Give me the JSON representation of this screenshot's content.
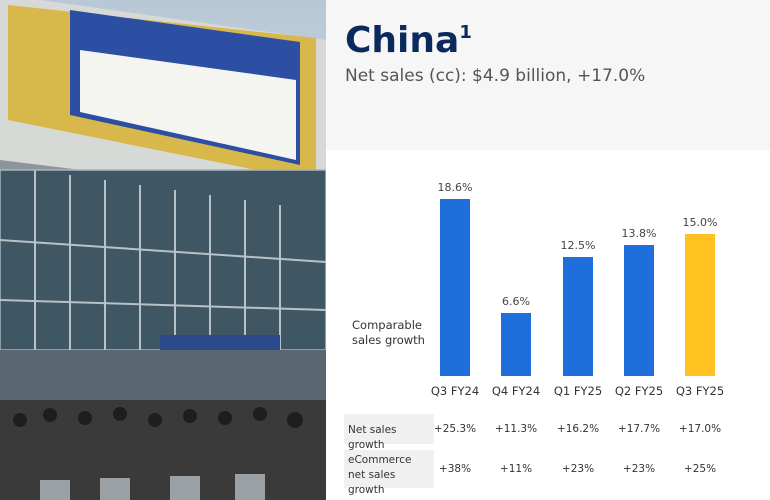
{
  "header": {
    "title": "China",
    "footnote": "1",
    "subtitle": "Net sales (cc): $4.9 billion, +17.0%"
  },
  "chart_data": {
    "type": "bar",
    "y_label": "Comparable sales growth",
    "categories": [
      "Q3 FY24",
      "Q4 FY24",
      "Q1 FY25",
      "Q2 FY25",
      "Q3 FY25"
    ],
    "values": [
      18.6,
      6.6,
      12.5,
      13.8,
      15.0
    ],
    "value_labels": [
      "18.6%",
      "6.6%",
      "12.5%",
      "13.8%",
      "15.0%"
    ],
    "colors": [
      "#1e6fdc",
      "#1e6fdc",
      "#1e6fdc",
      "#1e6fdc",
      "#ffc220"
    ]
  },
  "table": {
    "rows": [
      [
        "Net sales growth",
        "+25.3%",
        "+11.3%",
        "+16.2%",
        "+17.7%",
        "+17.0%"
      ],
      [
        "eCommerce net sales growth",
        "+38%",
        "+11%",
        "+23%",
        "+23%",
        "+25%"
      ]
    ]
  }
}
